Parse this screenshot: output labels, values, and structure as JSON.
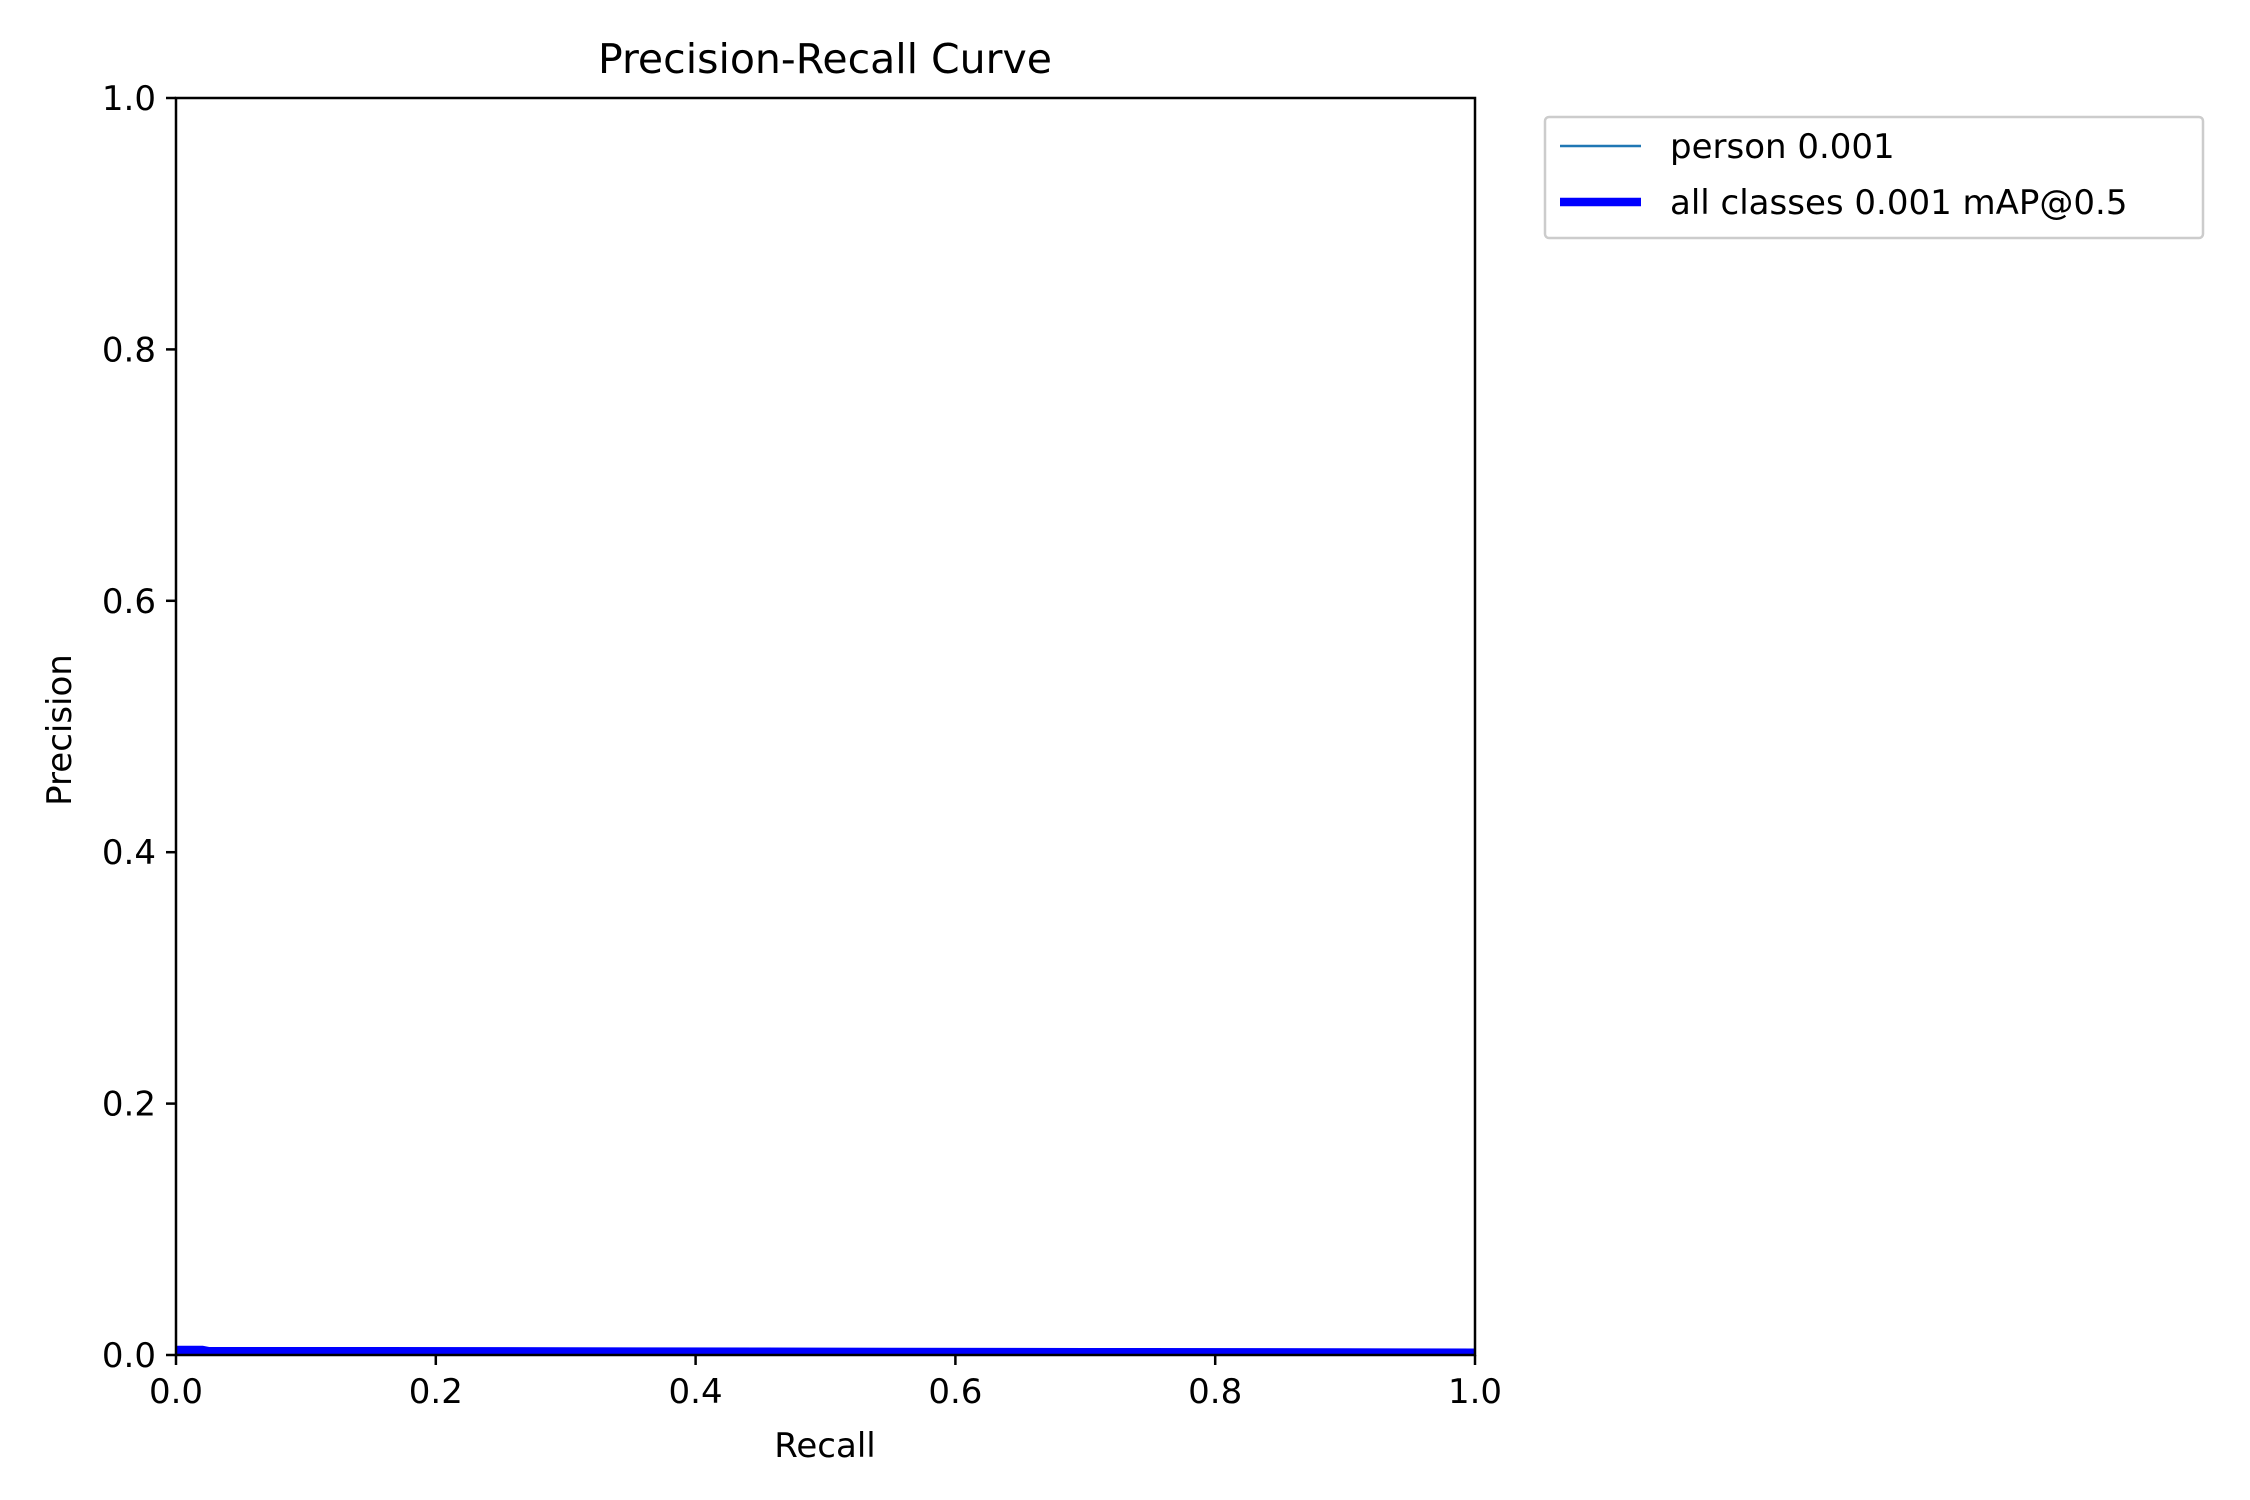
{
  "chart_data": {
    "type": "line",
    "title": "Precision-Recall Curve",
    "xlabel": "Recall",
    "ylabel": "Precision",
    "xlim": [
      0,
      1
    ],
    "ylim": [
      0,
      1
    ],
    "xticks": [
      "0.0",
      "0.2",
      "0.4",
      "0.6",
      "0.8",
      "1.0"
    ],
    "yticks": [
      "0.0",
      "0.2",
      "0.4",
      "0.6",
      "0.8",
      "1.0"
    ],
    "grid": false,
    "legend_position": "outside-top-right",
    "series": [
      {
        "name": "person 0.001",
        "color": "#1f77b4",
        "line_width": "thin",
        "x": [
          0.0,
          0.02,
          0.025,
          0.1,
          0.3,
          0.5,
          0.7,
          0.9,
          1.0
        ],
        "y": [
          0.004,
          0.004,
          0.003,
          0.003,
          0.0028,
          0.0025,
          0.0022,
          0.002,
          0.0018
        ]
      },
      {
        "name": "all classes 0.001 mAP@0.5",
        "color": "#0000ff",
        "line_width": "thick",
        "x": [
          0.0,
          0.02,
          0.025,
          0.1,
          0.3,
          0.5,
          0.7,
          0.9,
          1.0
        ],
        "y": [
          0.004,
          0.004,
          0.003,
          0.003,
          0.0028,
          0.0025,
          0.0022,
          0.002,
          0.0018
        ]
      }
    ]
  }
}
